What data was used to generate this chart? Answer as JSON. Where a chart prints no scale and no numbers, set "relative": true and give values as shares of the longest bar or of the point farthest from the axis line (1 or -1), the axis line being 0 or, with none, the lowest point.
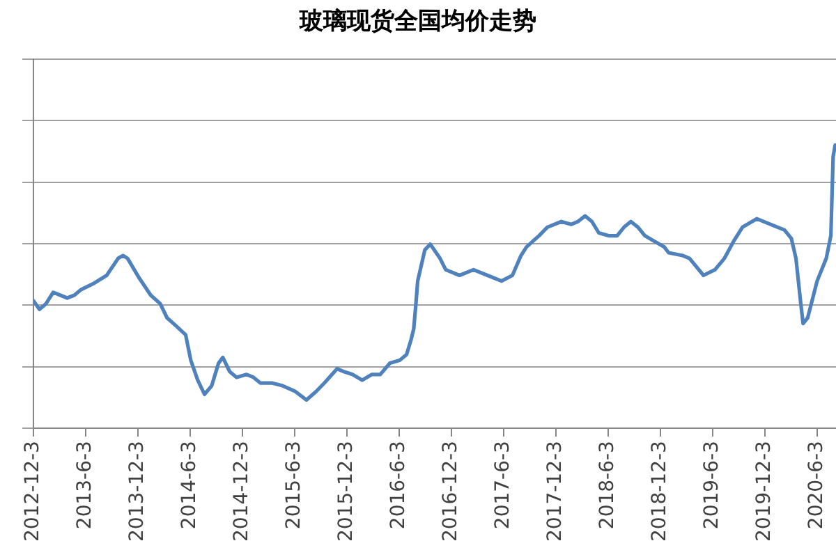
{
  "chart_data": {
    "type": "line",
    "title": "玻璃现货全国均价走势",
    "x": [
      "2012-12-03",
      "2012-12-24",
      "2013-01-16",
      "2013-02-10",
      "2013-03-07",
      "2013-03-31",
      "2013-04-25",
      "2013-05-19",
      "2013-06-29",
      "2013-08-16",
      "2013-09-25",
      "2013-10-12",
      "2013-10-28",
      "2013-12-08",
      "2014-01-17",
      "2014-02-19",
      "2014-03-15",
      "2014-04-17",
      "2014-05-19",
      "2014-06-06",
      "2014-06-30",
      "2014-07-24",
      "2014-08-18",
      "2014-09-11",
      "2014-09-26",
      "2014-10-20",
      "2014-11-13",
      "2014-12-18",
      "2015-01-11",
      "2015-02-04",
      "2015-03-16",
      "2015-04-23",
      "2015-06-06",
      "2015-07-15",
      "2015-08-18",
      "2015-09-16",
      "2015-10-30",
      "2015-11-23",
      "2015-12-23",
      "2016-01-26",
      "2016-02-29",
      "2016-03-29",
      "2016-05-02",
      "2016-06-05",
      "2016-06-29",
      "2016-07-14",
      "2016-07-24",
      "2016-07-31",
      "2016-08-07",
      "2016-09-01",
      "2016-09-20",
      "2016-10-24",
      "2016-11-13",
      "2016-12-31",
      "2017-02-18",
      "2017-04-08",
      "2017-05-27",
      "2017-07-04",
      "2017-08-03",
      "2017-08-22",
      "2017-10-05",
      "2017-11-03",
      "2017-12-22",
      "2018-01-25",
      "2018-02-18",
      "2018-03-15",
      "2018-04-08",
      "2018-05-02",
      "2018-06-05",
      "2018-07-05",
      "2018-07-29",
      "2018-08-22",
      "2018-09-16",
      "2018-10-10",
      "2018-11-13",
      "2018-12-17",
      "2019-01-01",
      "2019-02-19",
      "2019-03-15",
      "2019-05-03",
      "2019-06-12",
      "2019-07-15",
      "2019-08-16",
      "2019-09-16",
      "2019-11-05",
      "2019-12-24",
      "2020-02-10",
      "2020-03-05",
      "2020-03-21",
      "2020-04-07",
      "2020-04-15",
      "2020-05-01",
      "2020-06-03",
      "2020-07-05",
      "2020-07-21",
      "2020-07-29",
      "2020-08-05"
    ],
    "values": [
      0.45,
      0.42,
      0.44,
      0.48,
      0.47,
      0.46,
      0.47,
      0.49,
      0.51,
      0.54,
      0.6,
      0.61,
      0.6,
      0.53,
      0.47,
      0.44,
      0.39,
      0.36,
      0.33,
      0.24,
      0.17,
      0.12,
      0.15,
      0.23,
      0.25,
      0.2,
      0.18,
      0.19,
      0.18,
      0.16,
      0.16,
      0.15,
      0.13,
      0.1,
      0.13,
      0.16,
      0.21,
      0.2,
      0.19,
      0.17,
      0.19,
      0.19,
      0.23,
      0.24,
      0.26,
      0.31,
      0.35,
      0.43,
      0.52,
      0.63,
      0.65,
      0.6,
      0.56,
      0.54,
      0.56,
      0.54,
      0.52,
      0.54,
      0.61,
      0.64,
      0.68,
      0.71,
      0.73,
      0.72,
      0.73,
      0.75,
      0.73,
      0.69,
      0.68,
      0.68,
      0.71,
      0.73,
      0.71,
      0.68,
      0.66,
      0.64,
      0.62,
      0.61,
      0.6,
      0.54,
      0.56,
      0.6,
      0.66,
      0.71,
      0.74,
      0.72,
      0.7,
      0.67,
      0.6,
      0.44,
      0.37,
      0.39,
      0.52,
      0.6,
      0.68,
      0.96,
      1
    ],
    "color": "#4f81bd",
    "relative": true,
    "xlim": [
      "2012-12-03",
      "2020-08-08"
    ],
    "xticks": [
      {
        "value": "2012-12-03",
        "label": "2012-12-3"
      },
      {
        "value": "2013-06-03",
        "label": "2013-6-3"
      },
      {
        "value": "2013-12-03",
        "label": "2013-12-3"
      },
      {
        "value": "2014-06-03",
        "label": "2014-6-3"
      },
      {
        "value": "2014-12-03",
        "label": "2014-12-3"
      },
      {
        "value": "2015-06-03",
        "label": "2015-6-3"
      },
      {
        "value": "2015-12-03",
        "label": "2015-12-3"
      },
      {
        "value": "2016-06-03",
        "label": "2016-6-3"
      },
      {
        "value": "2016-12-03",
        "label": "2016-12-3"
      },
      {
        "value": "2017-06-03",
        "label": "2017-6-3"
      },
      {
        "value": "2017-12-03",
        "label": "2017-12-3"
      },
      {
        "value": "2018-06-03",
        "label": "2018-6-3"
      },
      {
        "value": "2018-12-03",
        "label": "2018-12-3"
      },
      {
        "value": "2019-06-03",
        "label": "2019-6-3"
      },
      {
        "value": "2019-12-03",
        "label": "2019-12-3"
      },
      {
        "value": "2020-06-03",
        "label": "2020-6-3"
      }
    ],
    "grid": "y",
    "tick_labels": "x",
    "line_style": "solid"
  }
}
